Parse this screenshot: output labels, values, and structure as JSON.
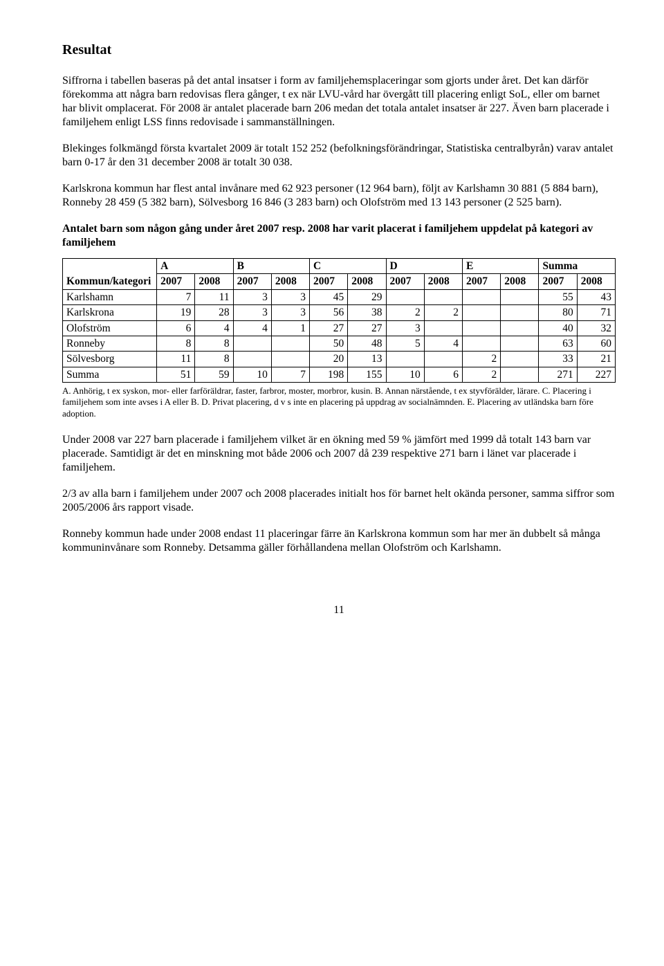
{
  "title": "Resultat",
  "para1": "Siffrorna i tabellen baseras på det antal insatser i form av familjehemsplaceringar som gjorts under året. Det kan därför förekomma att några barn redovisas flera gånger, t ex när LVU-vård har övergått till placering enligt SoL, eller om barnet har blivit omplacerat. För 2008 är antalet placerade barn 206 medan det totala antalet insatser är 227. Även barn placerade i familjehem enligt LSS finns redovisade i sammanställningen.",
  "para2": "Blekinges folkmängd första kvartalet 2009 är totalt 152 252 (befolkningsförändringar, Statistiska centralbyrån) varav antalet barn 0-17 år den 31 december 2008 är totalt 30 038.",
  "para3": "Karlskrona kommun har flest antal invånare med 62 923 personer (12 964 barn), följt av Karlshamn 30 881 (5 884 barn), Ronneby 28 459 (5 382 barn), Sölvesborg 16 846 (3 283 barn) och Olofström med 13 143 personer (2 525 barn).",
  "subheading": "Antalet barn som någon gång under året 2007 resp. 2008 har varit placerat i familjehem uppdelat på kategori av familjehem",
  "table": {
    "header_top": [
      "Kommun/kategori",
      "A",
      "B",
      "C",
      "D",
      "E",
      "Summa"
    ],
    "header_years": [
      "2007",
      "2008",
      "2007",
      "2008",
      "2007",
      "2008",
      "2007",
      "2008",
      "2007",
      "2008",
      "2007",
      "2008"
    ],
    "rows": [
      {
        "label": "Karlshamn",
        "cells": [
          "7",
          "11",
          "3",
          "3",
          "45",
          "29",
          "",
          "",
          "",
          "",
          "55",
          "43"
        ]
      },
      {
        "label": "Karlskrona",
        "cells": [
          "19",
          "28",
          "3",
          "3",
          "56",
          "38",
          "2",
          "2",
          "",
          "",
          "80",
          "71"
        ]
      },
      {
        "label": "Olofström",
        "cells": [
          "6",
          "4",
          "4",
          "1",
          "27",
          "27",
          "3",
          "",
          "",
          "",
          "40",
          "32"
        ]
      },
      {
        "label": "Ronneby",
        "cells": [
          "8",
          "8",
          "",
          "",
          "50",
          "48",
          "5",
          "4",
          "",
          "",
          "63",
          "60"
        ]
      },
      {
        "label": "Sölvesborg",
        "cells": [
          "11",
          "8",
          "",
          "",
          "20",
          "13",
          "",
          "",
          "2",
          "",
          "33",
          "21"
        ]
      },
      {
        "label": "Summa",
        "cells": [
          "51",
          "59",
          "10",
          "7",
          "198",
          "155",
          "10",
          "6",
          "2",
          "",
          "271",
          "227"
        ]
      }
    ]
  },
  "footnote": "A. Anhörig, t ex syskon, mor- eller farföräldrar, faster, farbror, moster, morbror, kusin.  B. Annan närstående,  t ex styvförälder, lärare.  C. Placering i familjehem som inte avses i A eller B.  D. Privat placering, d v s inte en placering på uppdrag av socialnämnden.  E. Placering av utländska barn före adoption.",
  "para4": "Under 2008 var 227 barn placerade i familjehem vilket är en ökning med 59 % jämfört med 1999 då totalt 143 barn var placerade. Samtidigt är det en minskning mot både 2006 och 2007 då 239 respektive 271 barn i länet var placerade i familjehem.",
  "para5": "2/3 av alla barn i familjehem under 2007 och 2008 placerades initialt hos för barnet helt okända personer, samma siffror som 2005/2006 års rapport visade.",
  "para6": "Ronneby kommun hade under 2008 endast 11 placeringar färre än Karlskrona kommun som har mer än dubbelt så många kommuninvånare som Ronneby. Detsamma gäller förhållandena mellan Olofström och Karlshamn.",
  "page_number": "11"
}
